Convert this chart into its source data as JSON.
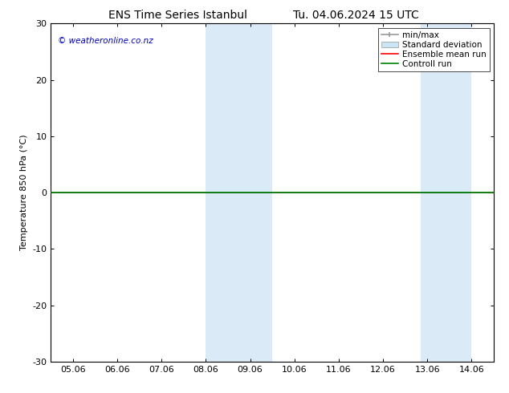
{
  "title_left": "ENS Time Series Istanbul",
  "title_right": "Tu. 04.06.2024 15 UTC",
  "ylabel": "Temperature 850 hPa (°C)",
  "watermark": "© weatheronline.co.nz",
  "ylim": [
    -30,
    30
  ],
  "yticks": [
    -30,
    -20,
    -10,
    0,
    10,
    20,
    30
  ],
  "xtick_labels": [
    "05.06",
    "06.06",
    "07.06",
    "08.06",
    "09.06",
    "10.06",
    "11.06",
    "12.06",
    "13.06",
    "14.06"
  ],
  "xtick_positions": [
    0,
    1,
    2,
    3,
    4,
    5,
    6,
    7,
    8,
    9
  ],
  "shaded_bands": [
    {
      "x_start": 3.0,
      "x_end": 4.5
    },
    {
      "x_start": 7.85,
      "x_end": 9.0
    }
  ],
  "control_run_y": 0.0,
  "control_run_color": "#008000",
  "ensemble_mean_color": "#ff0000",
  "minmax_color": "#999999",
  "std_dev_color": "#cce5f5",
  "shade_color": "#daeaf7",
  "background_color": "#ffffff",
  "plot_bg_color": "#ffffff",
  "title_fontsize": 10,
  "axis_label_fontsize": 8,
  "tick_fontsize": 8,
  "watermark_color": "#0000bb",
  "legend_fontsize": 7.5
}
